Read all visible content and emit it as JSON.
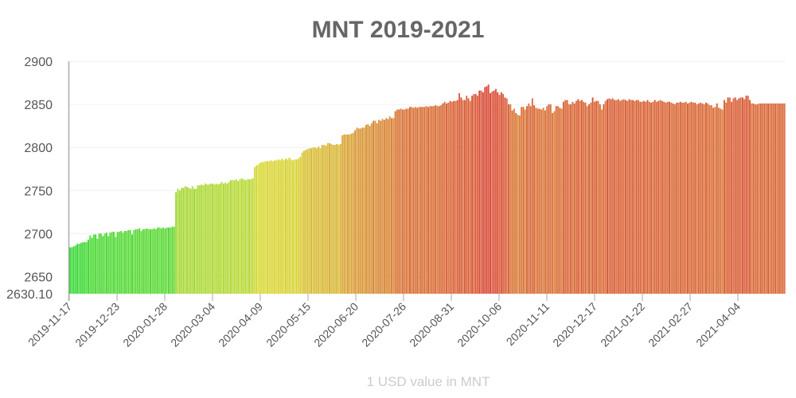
{
  "chart_data": {
    "type": "bar",
    "title": "MNT 2019-2021",
    "xlabel": "1 USD value in MNT",
    "ylabel": "",
    "ylim": [
      2630.1,
      2900
    ],
    "y_ticks": [
      "2630.10",
      "2650",
      "2700",
      "2750",
      "2800",
      "2850",
      "2900"
    ],
    "x_range": [
      "2019-11-17",
      "2021-05-10"
    ],
    "x_ticks": [
      "2019-11-17",
      "2019-12-23",
      "2020-01-28",
      "2020-03-04",
      "2020-04-09",
      "2020-05-15",
      "2020-06-20",
      "2020-07-26",
      "2020-08-31",
      "2020-10-06",
      "2020-11-11",
      "2020-12-17",
      "2021-01-22",
      "2021-02-27",
      "2021-04-04"
    ],
    "grid": "horizontal",
    "colors": {
      "low": "#3ddc3d",
      "mid": "#d8d040",
      "high": "#d9452a"
    },
    "values": [
      2684,
      2684,
      2685,
      2686,
      2688,
      2688,
      2689,
      2690,
      2690,
      2690,
      2693,
      2698,
      2695,
      2699,
      2699,
      2694,
      2700,
      2700,
      2697,
      2700,
      2701,
      2697,
      2701,
      2702,
      2702,
      2696,
      2702,
      2702,
      2703,
      2701,
      2703,
      2703,
      2704,
      2704,
      2699,
      2704,
      2705,
      2705,
      2706,
      2703,
      2705,
      2705,
      2706,
      2705,
      2705,
      2705,
      2706,
      2705,
      2707,
      2707,
      2706,
      2707,
      2706,
      2707,
      2707,
      2707,
      2708,
      2708,
      2748,
      2752,
      2750,
      2753,
      2753,
      2755,
      2754,
      2753,
      2752,
      2755,
      2752,
      2752,
      2756,
      2756,
      2757,
      2756,
      2758,
      2757,
      2757,
      2758,
      2758,
      2757,
      2758,
      2757,
      2758,
      2760,
      2758,
      2759,
      2758,
      2760,
      2762,
      2762,
      2762,
      2763,
      2761,
      2763,
      2764,
      2763,
      2762,
      2763,
      2763,
      2763,
      2764,
      2777,
      2779,
      2780,
      2782,
      2783,
      2783,
      2784,
      2784,
      2784,
      2785,
      2784,
      2785,
      2785,
      2786,
      2785,
      2787,
      2785,
      2787,
      2786,
      2788,
      2786,
      2785,
      2786,
      2786,
      2787,
      2789,
      2794,
      2796,
      2797,
      2798,
      2799,
      2799,
      2800,
      2800,
      2799,
      2801,
      2799,
      2803,
      2803,
      2802,
      2805,
      2805,
      2804,
      2803,
      2803,
      2804,
      2803,
      2804,
      2814,
      2815,
      2815,
      2815,
      2815,
      2816,
      2817,
      2820,
      2823,
      2822,
      2822,
      2823,
      2823,
      2826,
      2827,
      2825,
      2828,
      2831,
      2831,
      2828,
      2832,
      2831,
      2833,
      2832,
      2834,
      2833,
      2836,
      2834,
      2834,
      2842,
      2844,
      2844,
      2845,
      2844,
      2844,
      2845,
      2845,
      2847,
      2847,
      2846,
      2847,
      2846,
      2847,
      2847,
      2847,
      2847,
      2848,
      2847,
      2848,
      2848,
      2848,
      2849,
      2848,
      2848,
      2849,
      2851,
      2853,
      2851,
      2852,
      2854,
      2853,
      2854,
      2854,
      2855,
      2863,
      2858,
      2855,
      2855,
      2860,
      2857,
      2854,
      2860,
      2862,
      2862,
      2860,
      2866,
      2866,
      2864,
      2870,
      2871,
      2873,
      2863,
      2865,
      2866,
      2868,
      2864,
      2861,
      2864,
      2862,
      2858,
      2857,
      2850,
      2850,
      2843,
      2845,
      2840,
      2838,
      2837,
      2847,
      2847,
      2844,
      2848,
      2851,
      2848,
      2857,
      2849,
      2846,
      2845,
      2845,
      2844,
      2846,
      2843,
      2848,
      2850,
      2850,
      2840,
      2842,
      2848,
      2848,
      2846,
      2845,
      2853,
      2855,
      2855,
      2850,
      2850,
      2853,
      2851,
      2854,
      2856,
      2854,
      2855,
      2853,
      2852,
      2848,
      2850,
      2852,
      2858,
      2853,
      2854,
      2854,
      2850,
      2844,
      2850,
      2854,
      2856,
      2857,
      2856,
      2857,
      2855,
      2855,
      2856,
      2854,
      2855,
      2856,
      2855,
      2854,
      2856,
      2855,
      2855,
      2854,
      2855,
      2855,
      2853,
      2853,
      2854,
      2853,
      2855,
      2853,
      2852,
      2853,
      2855,
      2853,
      2854,
      2855,
      2854,
      2853,
      2852,
      2853,
      2853,
      2852,
      2851,
      2850,
      2852,
      2852,
      2853,
      2852,
      2852,
      2853,
      2851,
      2852,
      2853,
      2852,
      2852,
      2850,
      2851,
      2852,
      2851,
      2850,
      2852,
      2851,
      2849,
      2849,
      2846,
      2847,
      2851,
      2846,
      2845,
      2844,
      2855,
      2852,
      2858,
      2858,
      2853,
      2857,
      2858,
      2855,
      2857,
      2858,
      2858,
      2856,
      2860,
      2860,
      2855,
      2851,
      2851,
      2850,
      2850,
      2851,
      2851,
      2851,
      2851,
      2851,
      2851,
      2851,
      2851,
      2851,
      2851,
      2851,
      2851,
      2851,
      2851,
      2851
    ]
  }
}
